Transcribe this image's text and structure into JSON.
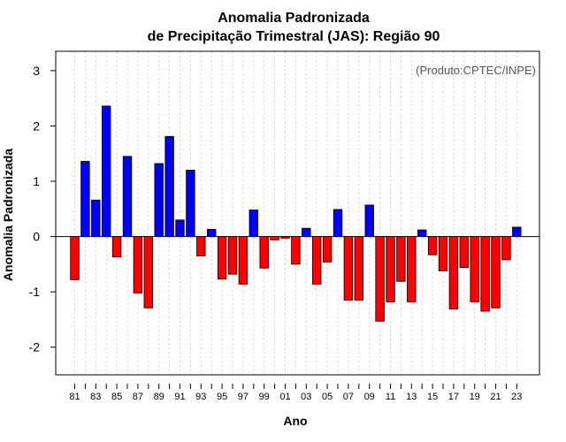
{
  "chart_data": {
    "type": "bar",
    "title": "Anomalia Padronizada",
    "subtitle": "de Precipitação Trimestral (JAS): Região 90",
    "xlabel": "Ano",
    "ylabel": "Anomalia Padronizada",
    "annotation": "(Produto:CPTEC/INPE)",
    "ylim": [
      -2.5,
      3.35
    ],
    "yticks": [
      -2,
      -1,
      0,
      1,
      2,
      3
    ],
    "categories": [
      "81",
      "82",
      "83",
      "84",
      "85",
      "86",
      "87",
      "88",
      "89",
      "90",
      "91",
      "92",
      "93",
      "94",
      "95",
      "96",
      "97",
      "98",
      "99",
      "00",
      "01",
      "02",
      "03",
      "04",
      "05",
      "06",
      "07",
      "08",
      "09",
      "10",
      "11",
      "12",
      "13",
      "14",
      "15",
      "16",
      "17",
      "18",
      "19",
      "20",
      "21",
      "22",
      "23"
    ],
    "xtick_labels": [
      "81",
      "83",
      "85",
      "87",
      "89",
      "91",
      "93",
      "95",
      "97",
      "99",
      "01",
      "03",
      "05",
      "07",
      "09",
      "11",
      "13",
      "15",
      "17",
      "19",
      "21",
      "23"
    ],
    "values": [
      -0.78,
      1.36,
      0.66,
      2.36,
      -0.37,
      1.45,
      -1.02,
      -1.29,
      1.32,
      1.81,
      0.3,
      1.2,
      -0.35,
      0.13,
      -0.77,
      -0.68,
      -0.86,
      0.48,
      -0.57,
      -0.06,
      -0.03,
      -0.5,
      0.15,
      -0.86,
      -0.46,
      0.49,
      -1.15,
      -1.15,
      0.57,
      -1.53,
      -1.18,
      -0.81,
      -1.18,
      0.12,
      -0.33,
      -0.62,
      -1.31,
      -0.56,
      -1.18,
      -1.35,
      -1.29,
      -0.42,
      0.17
    ],
    "positive_color": "#0000ff",
    "negative_color": "#ff0000",
    "grid": true
  }
}
